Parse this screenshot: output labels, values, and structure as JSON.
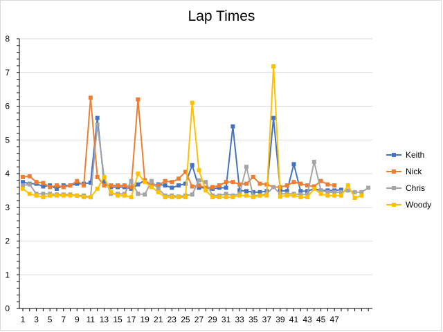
{
  "chart_data": {
    "type": "line",
    "title": "Lap Times",
    "xlabel": "",
    "ylabel": "",
    "ylim": [
      0,
      8
    ],
    "yticks": [
      0,
      1,
      2,
      3,
      4,
      5,
      6,
      7,
      8
    ],
    "xtick_labels": [
      "1",
      "3",
      "5",
      "7",
      "9",
      "11",
      "13",
      "15",
      "17",
      "19",
      "21",
      "23",
      "25",
      "27",
      "29",
      "31",
      "33",
      "35",
      "37",
      "39",
      "41",
      "43",
      "45",
      "47"
    ],
    "grid": "horizontal",
    "legend_position": "right",
    "x": [
      1,
      2,
      3,
      4,
      5,
      6,
      7,
      8,
      9,
      10,
      11,
      12,
      13,
      14,
      15,
      16,
      17,
      18,
      19,
      20,
      21,
      22,
      23,
      24,
      25,
      26,
      27,
      28,
      29,
      30,
      31,
      32,
      33,
      34,
      35,
      36,
      37,
      38,
      39,
      40,
      41,
      42,
      43,
      44,
      45,
      46,
      47,
      48,
      49,
      50,
      51,
      52
    ],
    "series": [
      {
        "name": "Keith",
        "color": "#4472c4",
        "marker": "square",
        "values": [
          3.75,
          3.7,
          3.7,
          3.62,
          3.65,
          3.55,
          3.65,
          3.65,
          3.7,
          3.7,
          3.73,
          5.65,
          3.75,
          3.6,
          3.6,
          3.6,
          3.55,
          3.68,
          3.8,
          3.65,
          3.68,
          3.65,
          3.58,
          3.65,
          3.7,
          4.25,
          3.58,
          3.58,
          3.55,
          3.58,
          3.58,
          5.4,
          3.5,
          3.48,
          3.45,
          3.45,
          3.48,
          5.65,
          3.5,
          3.48,
          4.28,
          3.48,
          3.48,
          3.55,
          3.5,
          3.5,
          3.5,
          3.52,
          null,
          null,
          null,
          null
        ]
      },
      {
        "name": "Nick",
        "color": "#ed7d31",
        "marker": "square",
        "values": [
          3.9,
          3.92,
          3.75,
          3.72,
          3.6,
          3.65,
          3.6,
          3.65,
          3.78,
          3.65,
          6.25,
          3.9,
          3.65,
          3.65,
          3.65,
          3.65,
          3.6,
          6.2,
          3.8,
          3.65,
          3.65,
          3.78,
          3.75,
          3.85,
          4.05,
          3.62,
          3.65,
          3.58,
          3.6,
          3.65,
          3.75,
          3.75,
          3.68,
          3.7,
          3.9,
          3.7,
          3.68,
          3.6,
          3.6,
          3.65,
          3.75,
          3.7,
          3.65,
          3.62,
          3.78,
          3.68,
          3.65,
          null,
          null,
          null,
          null,
          null
        ]
      },
      {
        "name": "Chris",
        "color": "#a5a5a5",
        "marker": "square",
        "values": [
          3.65,
          3.68,
          3.4,
          3.4,
          3.4,
          3.38,
          3.38,
          3.38,
          3.35,
          3.35,
          3.3,
          5.45,
          3.9,
          3.4,
          3.4,
          3.4,
          3.78,
          3.4,
          3.38,
          3.78,
          3.55,
          3.35,
          3.35,
          3.32,
          3.35,
          3.38,
          3.8,
          3.75,
          3.35,
          3.35,
          3.4,
          3.35,
          3.4,
          4.2,
          3.35,
          3.35,
          3.4,
          3.6,
          3.4,
          3.4,
          3.4,
          3.38,
          3.38,
          4.35,
          3.5,
          3.45,
          3.45,
          3.45,
          3.5,
          3.45,
          3.45,
          3.58
        ]
      },
      {
        "name": "Woody",
        "color": "#ffc000",
        "marker": "square",
        "values": [
          3.55,
          3.4,
          3.35,
          3.3,
          3.35,
          3.35,
          3.35,
          3.35,
          3.35,
          3.3,
          3.3,
          3.55,
          3.9,
          3.45,
          3.35,
          3.35,
          3.3,
          4.0,
          3.75,
          3.6,
          3.45,
          3.3,
          3.3,
          3.3,
          3.3,
          6.1,
          4.1,
          3.5,
          3.3,
          3.3,
          3.3,
          3.3,
          3.35,
          3.35,
          3.3,
          3.35,
          3.35,
          7.18,
          3.32,
          3.35,
          3.35,
          3.3,
          3.3,
          3.55,
          3.4,
          3.35,
          3.35,
          3.35,
          3.65,
          3.28,
          3.35,
          null
        ]
      }
    ]
  }
}
